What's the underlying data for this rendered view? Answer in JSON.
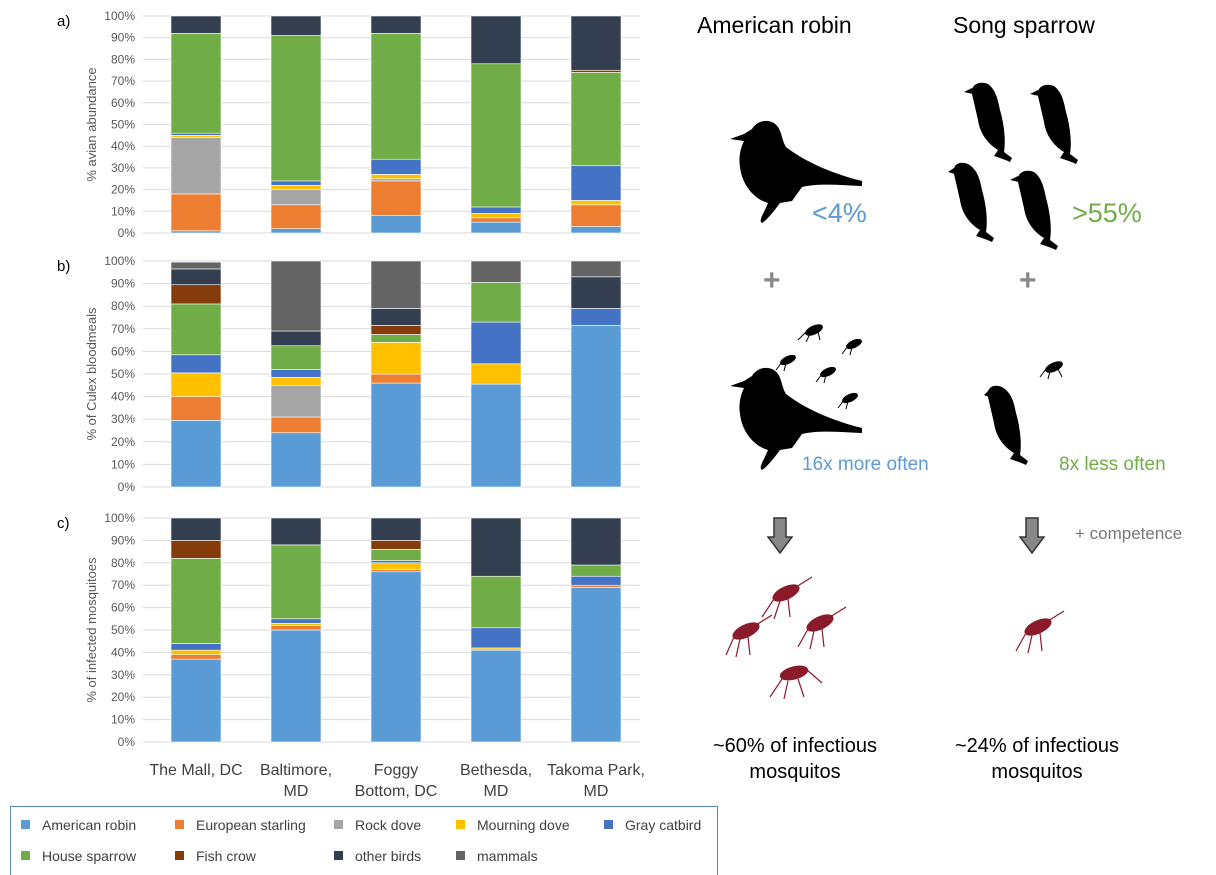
{
  "colors": {
    "American robin": "#5b9bd5",
    "European starling": "#ed7d31",
    "Rock dove": "#a5a5a5",
    "Mourning dove": "#ffc000",
    "Gray catbird": "#4472c4",
    "House sparrow": "#70ad47",
    "Fish crow": "#843c0c",
    "other birds": "#333f50",
    "mammals": "#636363"
  },
  "chart_data": [
    {
      "type": "bar",
      "panel_label": "a)",
      "ylabel": "% avian abundance",
      "ylim": [
        0,
        100
      ],
      "categories": [
        "The Mall, DC",
        "Baltimore, MD",
        "Foggy Bottom, DC",
        "Bethesda, MD",
        "Takoma Park, MD"
      ],
      "series": [
        {
          "name": "American robin",
          "values": [
            1,
            2,
            8,
            5,
            3
          ]
        },
        {
          "name": "European starling",
          "values": [
            17,
            11,
            16,
            2,
            10
          ]
        },
        {
          "name": "Rock dove",
          "values": [
            26,
            7,
            1,
            0,
            0
          ]
        },
        {
          "name": "Mourning dove",
          "values": [
            1,
            2,
            2,
            2,
            2
          ]
        },
        {
          "name": "Gray catbird",
          "values": [
            1,
            2,
            7,
            3,
            16
          ]
        },
        {
          "name": "House sparrow",
          "values": [
            46,
            67,
            58,
            66,
            43
          ]
        },
        {
          "name": "Fish crow",
          "values": [
            0,
            0,
            0,
            0,
            1
          ]
        },
        {
          "name": "other birds",
          "values": [
            8,
            9,
            8,
            22,
            25
          ]
        },
        {
          "name": "mammals",
          "values": [
            0,
            0,
            0,
            0,
            0
          ]
        }
      ]
    },
    {
      "type": "bar",
      "panel_label": "b)",
      "ylabel": "% of Culex bloodmeals",
      "ylim": [
        0,
        100
      ],
      "categories": [
        "The Mall, DC",
        "Baltimore, MD",
        "Foggy Bottom, DC",
        "Bethesda, MD",
        "Takoma Park, MD"
      ],
      "series": [
        {
          "name": "American robin",
          "values": [
            29.5,
            24,
            46,
            45.5,
            71.5
          ]
        },
        {
          "name": "European starling",
          "values": [
            10.5,
            7,
            4,
            0,
            0
          ]
        },
        {
          "name": "Rock dove",
          "values": [
            0,
            14,
            0,
            0,
            0
          ]
        },
        {
          "name": "Mourning dove",
          "values": [
            10.5,
            3.5,
            14,
            9,
            0
          ]
        },
        {
          "name": "Gray catbird",
          "values": [
            8,
            3.5,
            0,
            18.5,
            7.5
          ]
        },
        {
          "name": "House sparrow",
          "values": [
            22.5,
            10.5,
            3.5,
            17.5,
            0
          ]
        },
        {
          "name": "Fish crow",
          "values": [
            8.5,
            0,
            4,
            0,
            0
          ]
        },
        {
          "name": "other birds",
          "values": [
            7,
            6.5,
            7.5,
            0,
            14
          ]
        },
        {
          "name": "mammals",
          "values": [
            3,
            31,
            21,
            9.5,
            7
          ]
        }
      ]
    },
    {
      "type": "bar",
      "panel_label": "c)",
      "ylabel": "% of infected mosquitoes",
      "ylim": [
        0,
        100
      ],
      "categories": [
        "The Mall, DC",
        "Baltimore, MD",
        "Foggy Bottom, DC",
        "Bethesda, MD",
        "Takoma Park, MD"
      ],
      "series": [
        {
          "name": "American robin",
          "values": [
            37,
            50,
            76,
            41,
            69
          ]
        },
        {
          "name": "European starling",
          "values": [
            2,
            2,
            1,
            0,
            1
          ]
        },
        {
          "name": "Rock dove",
          "values": [
            0,
            0,
            0,
            0,
            0
          ]
        },
        {
          "name": "Mourning dove",
          "values": [
            2,
            1,
            3,
            1,
            0
          ]
        },
        {
          "name": "Gray catbird",
          "values": [
            3,
            2,
            1,
            9,
            4
          ]
        },
        {
          "name": "House sparrow",
          "values": [
            38,
            33,
            5,
            23,
            5
          ]
        },
        {
          "name": "Fish crow",
          "values": [
            8,
            0,
            4,
            0,
            0
          ]
        },
        {
          "name": "other birds",
          "values": [
            10,
            12,
            10,
            26,
            21
          ]
        },
        {
          "name": "mammals",
          "values": [
            0,
            0,
            0,
            0,
            0
          ]
        }
      ]
    }
  ],
  "y_ticks": [
    "0%",
    "10%",
    "20%",
    "30%",
    "40%",
    "50%",
    "60%",
    "70%",
    "80%",
    "90%",
    "100%"
  ],
  "x_labels": [
    {
      "line1": "The Mall, DC",
      "line2": ""
    },
    {
      "line1": "Baltimore,",
      "line2": "MD"
    },
    {
      "line1": "Foggy",
      "line2": "Bottom, DC"
    },
    {
      "line1": "Bethesda,",
      "line2": "MD"
    },
    {
      "line1": "Takoma Park,",
      "line2": "MD"
    }
  ],
  "legend": [
    {
      "name": "American robin",
      "color": "#5b9bd5"
    },
    {
      "name": "European starling",
      "color": "#ed7d31"
    },
    {
      "name": "Rock dove",
      "color": "#a5a5a5"
    },
    {
      "name": "Mourning dove",
      "color": "#ffc000"
    },
    {
      "name": "Gray catbird",
      "color": "#4472c4"
    },
    {
      "name": "House sparrow",
      "color": "#70ad47"
    },
    {
      "name": "Fish crow",
      "color": "#843c0c"
    },
    {
      "name": "other birds",
      "color": "#333f50"
    },
    {
      "name": "mammals",
      "color": "#636363"
    }
  ],
  "infographic": {
    "robin_title": "American robin",
    "sparrow_title": "Song sparrow",
    "robin_abundance": "<4%",
    "sparrow_abundance": ">55%",
    "plus": "+",
    "robin_feeding": "16x more often",
    "sparrow_feeding": "8x less often",
    "competence": "+ competence",
    "robin_result_line1": "~60% of infectious",
    "robin_result_line2": "mosquitos",
    "sparrow_result_line1": "~24% of infectious",
    "sparrow_result_line2": "mosquitos",
    "blue": "#5b9bd5",
    "green": "#70ad47",
    "mosquito_color": "#8b1a2b"
  }
}
